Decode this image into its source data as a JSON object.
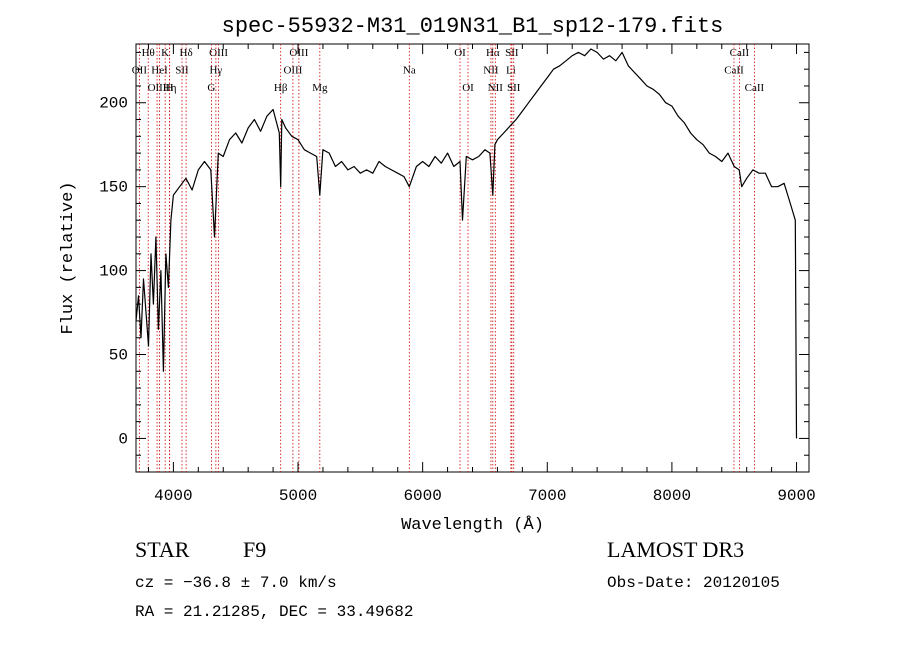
{
  "chart_data": {
    "type": "line",
    "title": "spec-55932-M31_019N31_B1_sp12-179.fits",
    "xlabel": "Wavelength (Å)",
    "ylabel": "Flux (relative)",
    "xlim": [
      3700,
      9100
    ],
    "ylim": [
      -20,
      235
    ],
    "x_ticks": [
      4000,
      5000,
      6000,
      7000,
      8000,
      9000
    ],
    "y_ticks": [
      0,
      50,
      100,
      150,
      200
    ],
    "series": [
      {
        "name": "flux",
        "x": [
          3700,
          3720,
          3740,
          3760,
          3780,
          3800,
          3820,
          3840,
          3860,
          3880,
          3900,
          3920,
          3940,
          3960,
          3980,
          4000,
          4050,
          4100,
          4150,
          4200,
          4250,
          4300,
          4330,
          4360,
          4400,
          4450,
          4500,
          4550,
          4600,
          4650,
          4700,
          4750,
          4800,
          4850,
          4861,
          4870,
          4900,
          4950,
          5000,
          5050,
          5100,
          5150,
          5175,
          5200,
          5250,
          5300,
          5350,
          5400,
          5450,
          5500,
          5550,
          5600,
          5650,
          5700,
          5750,
          5800,
          5850,
          5893,
          5950,
          6000,
          6050,
          6100,
          6150,
          6200,
          6250,
          6300,
          6320,
          6350,
          6400,
          6450,
          6500,
          6540,
          6563,
          6580,
          6600,
          6650,
          6700,
          6750,
          6800,
          6850,
          6900,
          6950,
          7000,
          7050,
          7100,
          7150,
          7200,
          7250,
          7300,
          7350,
          7400,
          7450,
          7500,
          7550,
          7600,
          7650,
          7700,
          7750,
          7800,
          7850,
          7900,
          7950,
          8000,
          8050,
          8100,
          8150,
          8200,
          8250,
          8300,
          8350,
          8400,
          8450,
          8500,
          8540,
          8560,
          8600,
          8650,
          8700,
          8750,
          8800,
          8850,
          8900,
          8950,
          8990,
          9000
        ],
        "y": [
          70,
          85,
          60,
          95,
          75,
          55,
          110,
          80,
          120,
          65,
          100,
          40,
          110,
          90,
          130,
          145,
          150,
          155,
          148,
          160,
          165,
          160,
          120,
          170,
          168,
          178,
          182,
          176,
          185,
          190,
          183,
          192,
          196,
          182,
          150,
          190,
          185,
          180,
          178,
          172,
          170,
          168,
          145,
          172,
          170,
          162,
          165,
          160,
          162,
          158,
          160,
          158,
          165,
          162,
          160,
          158,
          156,
          150,
          162,
          165,
          162,
          168,
          164,
          170,
          162,
          165,
          130,
          168,
          166,
          168,
          172,
          170,
          145,
          175,
          178,
          182,
          186,
          190,
          195,
          200,
          205,
          210,
          215,
          220,
          222,
          225,
          228,
          230,
          228,
          232,
          230,
          226,
          228,
          225,
          230,
          222,
          218,
          214,
          210,
          208,
          205,
          200,
          198,
          192,
          188,
          182,
          178,
          175,
          170,
          168,
          165,
          170,
          162,
          160,
          150,
          155,
          160,
          158,
          158,
          150,
          150,
          152,
          140,
          130,
          0
        ]
      }
    ],
    "annotation_lines": [
      {
        "label": "OII",
        "wave": 3727,
        "row": 2
      },
      {
        "label": "Hθ",
        "wave": 3798,
        "row": 1
      },
      {
        "label": "OIII",
        "wave": 3869,
        "row": 3
      },
      {
        "label": "HeI",
        "wave": 3889,
        "row": 2
      },
      {
        "label": "K",
        "wave": 3934,
        "row": 1
      },
      {
        "label": "Hη",
        "wave": 3970,
        "row": 3
      },
      {
        "label": "SII",
        "wave": 4069,
        "row": 2
      },
      {
        "label": "H",
        "wave": 3969,
        "row": 3
      },
      {
        "label": "Hδ",
        "wave": 4102,
        "row": 1
      },
      {
        "label": "G",
        "wave": 4305,
        "row": 3
      },
      {
        "label": "OIII",
        "wave": 4363,
        "row": 1
      },
      {
        "label": "Hγ",
        "wave": 4341,
        "row": 2
      },
      {
        "label": "Hβ",
        "wave": 4861,
        "row": 3
      },
      {
        "label": "OIII",
        "wave": 4959,
        "row": 2
      },
      {
        "label": "OIII",
        "wave": 5007,
        "row": 1
      },
      {
        "label": "Mg",
        "wave": 5175,
        "row": 3
      },
      {
        "label": "Na",
        "wave": 5893,
        "row": 2
      },
      {
        "label": "OI",
        "wave": 6300,
        "row": 1
      },
      {
        "label": "OI",
        "wave": 6364,
        "row": 3
      },
      {
        "label": "Hα",
        "wave": 6563,
        "row": 1
      },
      {
        "label": "NII",
        "wave": 6548,
        "row": 2
      },
      {
        "label": "NII",
        "wave": 6583,
        "row": 3
      },
      {
        "label": "SII",
        "wave": 6716,
        "row": 1
      },
      {
        "label": "Li",
        "wave": 6708,
        "row": 2
      },
      {
        "label": "SII",
        "wave": 6731,
        "row": 3
      },
      {
        "label": "CaII",
        "wave": 8498,
        "row": 2
      },
      {
        "label": "CaII",
        "wave": 8542,
        "row": 1
      },
      {
        "label": "CaII",
        "wave": 8662,
        "row": 3
      }
    ]
  },
  "info": {
    "class": "STAR",
    "subclass": "F9",
    "survey": "LAMOST DR3",
    "cz": "cz = −36.8 ± 7.0 km/s",
    "obs_date": "Obs-Date: 20120105",
    "radec": "RA =  21.21285, DEC =  33.49682"
  },
  "colors": {
    "line": "#000000",
    "annotation": "#cc0000"
  }
}
